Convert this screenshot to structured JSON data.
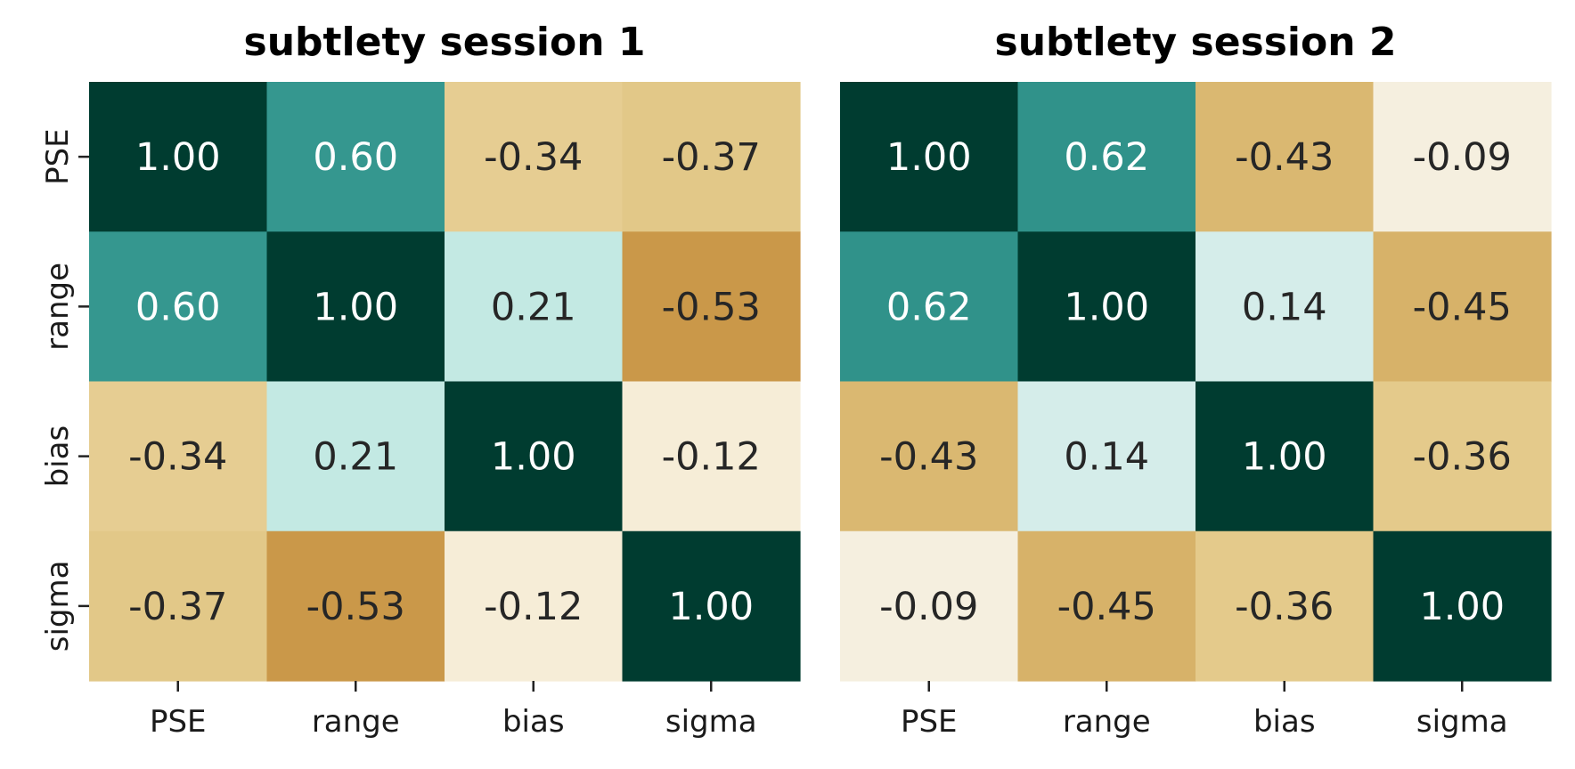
{
  "chart_data": [
    {
      "type": "heatmap",
      "title": "subtlety session 1",
      "x_categories": [
        "PSE",
        "range",
        "bias",
        "sigma"
      ],
      "y_categories": [
        "PSE",
        "range",
        "bias",
        "sigma"
      ],
      "values": [
        [
          1.0,
          0.6,
          -0.34,
          -0.37
        ],
        [
          0.6,
          1.0,
          0.21,
          -0.53
        ],
        [
          -0.34,
          0.21,
          1.0,
          -0.12
        ],
        [
          -0.37,
          -0.53,
          -0.12,
          1.0
        ]
      ],
      "value_format": "2 decimals",
      "colormap": "BrBG",
      "vmin": -1,
      "vmax": 1,
      "colorbar": false,
      "xlabel": "",
      "ylabel": ""
    },
    {
      "type": "heatmap",
      "title": "subtlety session 2",
      "x_categories": [
        "PSE",
        "range",
        "bias",
        "sigma"
      ],
      "y_categories": [
        "PSE",
        "range",
        "bias",
        "sigma"
      ],
      "values": [
        [
          1.0,
          0.62,
          -0.43,
          -0.09
        ],
        [
          0.62,
          1.0,
          0.14,
          -0.45
        ],
        [
          -0.43,
          0.14,
          1.0,
          -0.36
        ],
        [
          -0.09,
          -0.45,
          -0.36,
          1.0
        ]
      ],
      "value_format": "2 decimals",
      "colormap": "BrBG",
      "vmin": -1,
      "vmax": 1,
      "colorbar": false,
      "xlabel": "",
      "ylabel": ""
    }
  ]
}
